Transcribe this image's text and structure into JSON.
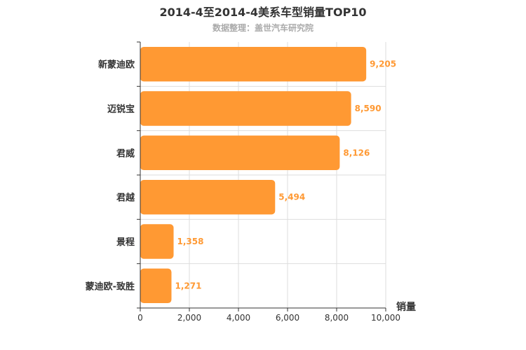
{
  "chart_data": {
    "type": "bar",
    "orientation": "horizontal",
    "title": "2014-4至2014-4美系车型销量TOP10",
    "subtitle": "数据整理：盖世汽车研究院",
    "categories": [
      "新蒙迪欧",
      "迈锐宝",
      "君威",
      "君越",
      "景程",
      "蒙迪欧-致胜"
    ],
    "values": [
      9205,
      8590,
      8126,
      5494,
      1358,
      1271
    ],
    "value_labels": [
      "9,205",
      "8,590",
      "8,126",
      "5,494",
      "1,358",
      "1,271"
    ],
    "xlabel": "销量",
    "ylabel": "",
    "xlim": [
      0,
      10000
    ],
    "x_ticks": [
      0,
      2000,
      4000,
      6000,
      8000,
      10000
    ],
    "x_tick_labels": [
      "0",
      "2,000",
      "4,000",
      "6,000",
      "8,000",
      "10,000"
    ],
    "grid": true,
    "bar_color": "#ff9933",
    "grid_color": "#dddddd",
    "axis_color": "#333333"
  }
}
